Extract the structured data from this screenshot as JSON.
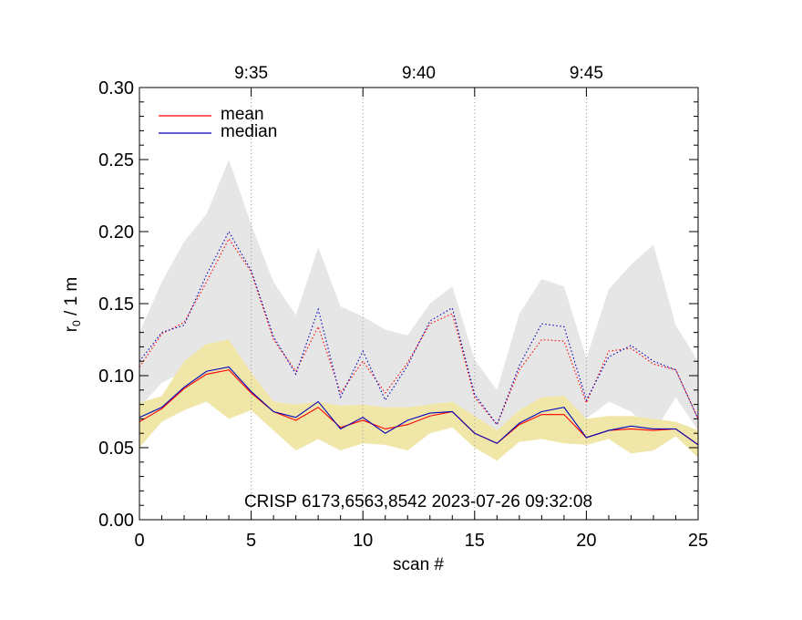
{
  "chart_data": {
    "type": "line",
    "xlabel": "scan #",
    "ylabel_main": "r",
    "ylabel_sub": "0",
    "ylabel_rest": " / 1 m",
    "xlim": [
      0,
      25
    ],
    "ylim": [
      0.0,
      0.3
    ],
    "x_ticks": [
      0,
      5,
      10,
      15,
      20,
      25
    ],
    "x_tick_labels": [
      "0",
      "5",
      "10",
      "15",
      "20",
      "25"
    ],
    "y_ticks": [
      0.0,
      0.05,
      0.1,
      0.15,
      0.2,
      0.25,
      0.3
    ],
    "y_tick_labels": [
      "0.00",
      "0.05",
      "0.10",
      "0.15",
      "0.20",
      "0.25",
      "0.30"
    ],
    "top_axis": {
      "tick_positions": [
        5,
        10,
        15,
        20
      ],
      "labels": [
        {
          "x": 5,
          "text": "9:35"
        },
        {
          "x": 12.5,
          "text": "9:40"
        },
        {
          "x": 20,
          "text": "9:45"
        }
      ]
    },
    "annotation": "CRISP 6173,6563,8542 2023-07-26 09:32:08",
    "legend": [
      {
        "label": "mean",
        "color": "#ff0000"
      },
      {
        "label": "median",
        "color": "#0000bb"
      }
    ],
    "x": [
      0,
      1,
      2,
      3,
      4,
      5,
      6,
      7,
      8,
      9,
      10,
      11,
      12,
      13,
      14,
      15,
      16,
      17,
      18,
      19,
      20,
      21,
      22,
      23,
      24,
      25
    ],
    "series": [
      {
        "name": "mean",
        "style": "solid",
        "color": "#ff0000",
        "values": [
          0.068,
          0.077,
          0.091,
          0.101,
          0.104,
          0.088,
          0.075,
          0.069,
          0.078,
          0.064,
          0.069,
          0.063,
          0.066,
          0.072,
          0.075,
          0.06,
          0.053,
          0.066,
          0.073,
          0.073,
          0.057,
          0.062,
          0.063,
          0.062,
          0.063,
          0.052
        ]
      },
      {
        "name": "median",
        "style": "solid",
        "color": "#0000bb",
        "values": [
          0.071,
          0.078,
          0.092,
          0.103,
          0.106,
          0.089,
          0.075,
          0.071,
          0.082,
          0.063,
          0.071,
          0.06,
          0.069,
          0.074,
          0.075,
          0.06,
          0.053,
          0.067,
          0.075,
          0.078,
          0.057,
          0.062,
          0.065,
          0.063,
          0.063,
          0.052
        ]
      },
      {
        "name": "mean (upper)",
        "style": "dotted",
        "color": "#ff0000",
        "values": [
          0.106,
          0.129,
          0.137,
          0.165,
          0.195,
          0.172,
          0.125,
          0.103,
          0.134,
          0.088,
          0.11,
          0.088,
          0.109,
          0.136,
          0.143,
          0.085,
          0.066,
          0.104,
          0.125,
          0.124,
          0.081,
          0.117,
          0.119,
          0.108,
          0.104,
          0.07
        ]
      },
      {
        "name": "median (upper)",
        "style": "dotted",
        "color": "#0000bb",
        "values": [
          0.11,
          0.13,
          0.135,
          0.17,
          0.2,
          0.173,
          0.127,
          0.101,
          0.146,
          0.085,
          0.117,
          0.083,
          0.107,
          0.138,
          0.147,
          0.087,
          0.066,
          0.107,
          0.136,
          0.134,
          0.083,
          0.113,
          0.121,
          0.11,
          0.104,
          0.07
        ]
      }
    ],
    "bands": [
      {
        "name": "upper range",
        "color": "#e6e6e6",
        "upper": [
          0.13,
          0.165,
          0.193,
          0.212,
          0.25,
          0.205,
          0.165,
          0.142,
          0.189,
          0.148,
          0.141,
          0.132,
          0.128,
          0.15,
          0.162,
          0.111,
          0.09,
          0.143,
          0.167,
          0.162,
          0.112,
          0.16,
          0.177,
          0.191,
          0.135,
          0.11
        ],
        "lower": [
          0.078,
          0.095,
          0.103,
          0.122,
          0.125,
          0.102,
          0.082,
          0.08,
          0.082,
          0.079,
          0.08,
          0.078,
          0.078,
          0.08,
          0.082,
          0.072,
          0.062,
          0.076,
          0.085,
          0.086,
          0.07,
          0.082,
          0.075,
          0.06,
          0.085,
          0.062
        ]
      },
      {
        "name": "lower range",
        "color": "#efe6a8",
        "upper": [
          0.081,
          0.086,
          0.11,
          0.122,
          0.125,
          0.102,
          0.082,
          0.08,
          0.082,
          0.079,
          0.08,
          0.078,
          0.078,
          0.08,
          0.082,
          0.072,
          0.062,
          0.076,
          0.085,
          0.086,
          0.07,
          0.072,
          0.072,
          0.07,
          0.068,
          0.062
        ],
        "lower": [
          0.05,
          0.068,
          0.076,
          0.082,
          0.07,
          0.076,
          0.062,
          0.048,
          0.056,
          0.048,
          0.053,
          0.052,
          0.048,
          0.06,
          0.064,
          0.05,
          0.041,
          0.054,
          0.056,
          0.053,
          0.052,
          0.056,
          0.046,
          0.048,
          0.058,
          0.043
        ]
      }
    ]
  }
}
